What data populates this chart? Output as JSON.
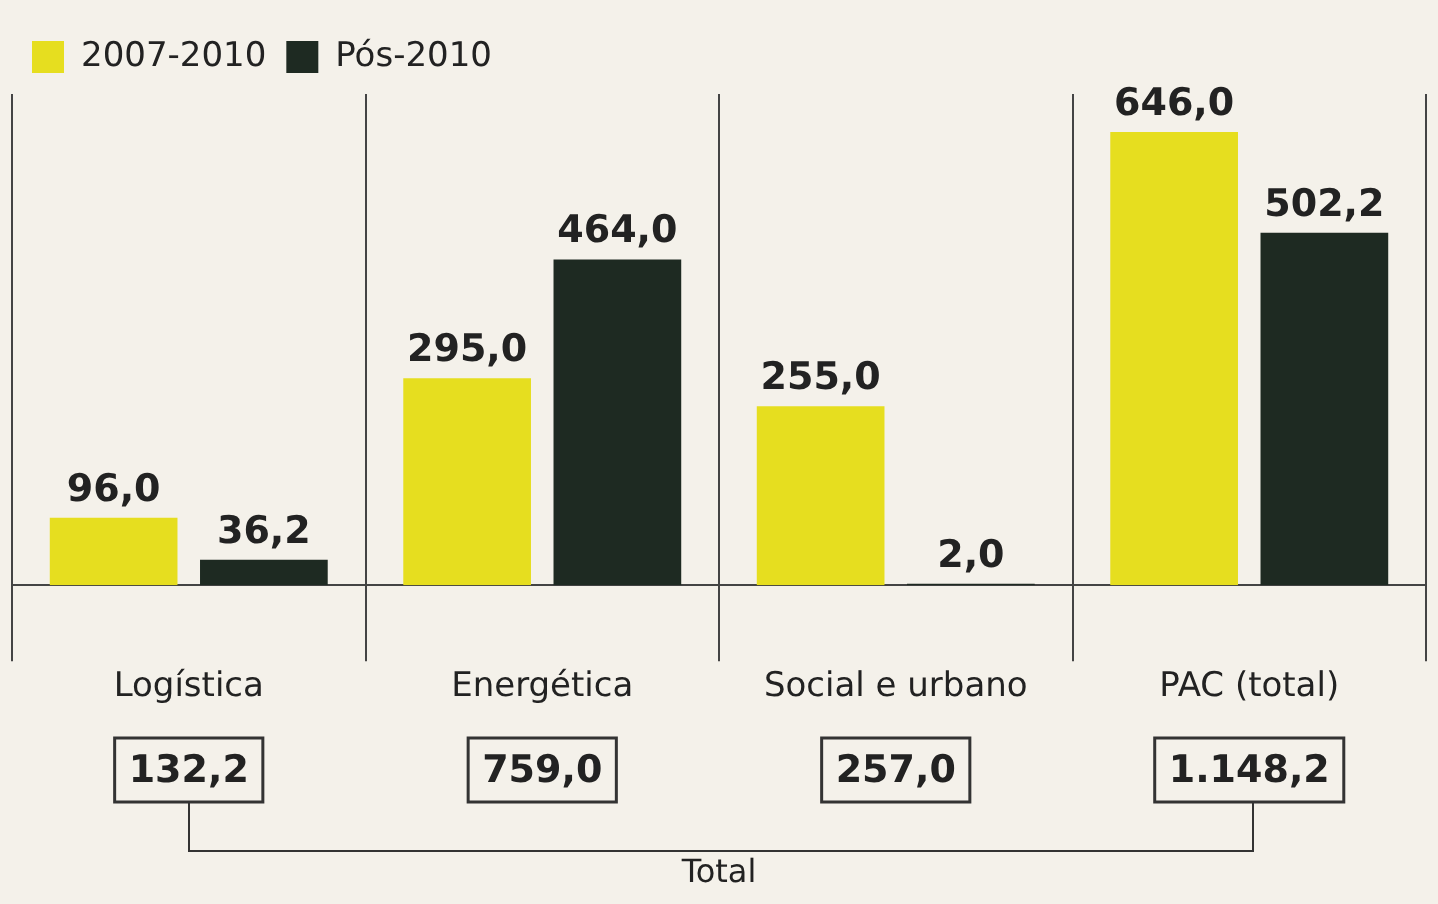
{
  "chart_data": {
    "type": "bar",
    "categories": [
      "Logística",
      "Energética",
      "Social e urbano",
      "PAC (total)"
    ],
    "series": [
      {
        "name": "2007-2010",
        "color": "#e6de1f",
        "values": [
          96.0,
          295.0,
          255.0,
          646.0
        ],
        "value_labels": [
          "96,0",
          "295,0",
          "255,0",
          "646,0"
        ]
      },
      {
        "name": "Pós-2010",
        "color": "#1e2a22",
        "values": [
          36.2,
          464.0,
          2.0,
          502.2
        ],
        "value_labels": [
          "36,2",
          "464,0",
          "2,0",
          "502,2"
        ]
      }
    ],
    "annotations": [
      "132,2",
      "759,0",
      "257,0",
      "1.148,2",
      "Total"
    ],
    "grid": "x",
    "legend": "top left"
  }
}
